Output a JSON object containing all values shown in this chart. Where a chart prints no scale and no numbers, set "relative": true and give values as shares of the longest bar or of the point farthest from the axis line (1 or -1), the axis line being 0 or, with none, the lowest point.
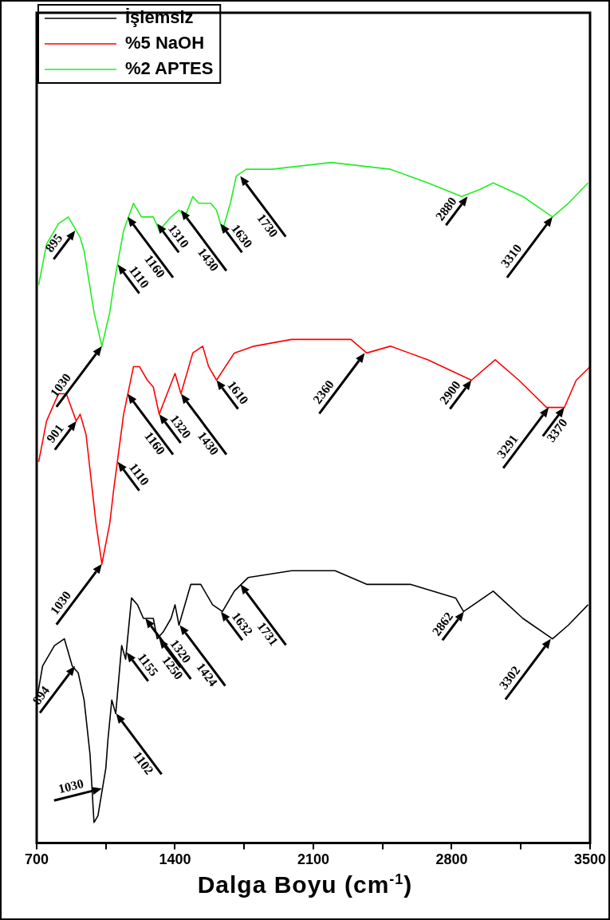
{
  "chart_data": {
    "type": "line",
    "relative": true,
    "xlabel": "Dalga Boyu (cm$^{-1}$)",
    "legend": "top left",
    "marker": "none",
    "line_style": "solid",
    "xlim": [
      700,
      3500
    ],
    "xticks": [
      700,
      {
        "value": 1050,
        "label": null
      },
      1400,
      {
        "value": 1750,
        "label": null
      },
      2100,
      {
        "value": 2450,
        "label": null
      },
      2800,
      {
        "value": 3150,
        "label": null
      },
      3500
    ],
    "series": [
      {
        "name": "İşlemsiz",
        "color": "#000000",
        "x": [
          700,
          730,
          790,
          840,
          880,
          910,
          940,
          970,
          990,
          1010,
          1050,
          1060,
          1080,
          1100,
          1130,
          1150,
          1180,
          1210,
          1240,
          1290,
          1310,
          1340,
          1380,
          1400,
          1420,
          1480,
          1530,
          1590,
          1640,
          1700,
          1770,
          1990,
          2210,
          2370,
          2590,
          2820,
          2860,
          3010,
          3160,
          3310,
          3390,
          3490
        ],
        "values": [
          0.21,
          0.26,
          0.29,
          0.3,
          0.26,
          0.25,
          0.21,
          0.13,
          0.03,
          0.04,
          0.11,
          0.15,
          0.21,
          0.19,
          0.29,
          0.27,
          0.36,
          0.35,
          0.33,
          0.33,
          0.3,
          0.31,
          0.33,
          0.35,
          0.32,
          0.38,
          0.38,
          0.35,
          0.34,
          0.37,
          0.39,
          0.4,
          0.4,
          0.38,
          0.38,
          0.36,
          0.34,
          0.37,
          0.33,
          0.3,
          0.32,
          0.35
        ]
      },
      {
        "name": "%5 NaOH",
        "color": "#ff0000",
        "x": [
          710,
          750,
          810,
          850,
          900,
          920,
          950,
          1000,
          1030,
          1070,
          1090,
          1140,
          1190,
          1220,
          1260,
          1290,
          1320,
          1360,
          1400,
          1430,
          1490,
          1540,
          1570,
          1610,
          1700,
          1800,
          1990,
          2190,
          2290,
          2370,
          2490,
          2680,
          2900,
          3020,
          3140,
          3280,
          3370,
          3430,
          3500
        ],
        "values": [
          0.56,
          0.62,
          0.66,
          0.66,
          0.62,
          0.63,
          0.6,
          0.47,
          0.41,
          0.47,
          0.52,
          0.63,
          0.7,
          0.7,
          0.68,
          0.67,
          0.63,
          0.66,
          0.69,
          0.66,
          0.72,
          0.73,
          0.7,
          0.68,
          0.72,
          0.73,
          0.74,
          0.74,
          0.74,
          0.72,
          0.73,
          0.71,
          0.68,
          0.71,
          0.68,
          0.64,
          0.64,
          0.68,
          0.7
        ]
      },
      {
        "name": "%2 APTES",
        "color": "#22ee22",
        "x": [
          710,
          750,
          810,
          860,
          900,
          920,
          940,
          990,
          1030,
          1070,
          1090,
          1140,
          1190,
          1230,
          1260,
          1290,
          1320,
          1380,
          1420,
          1450,
          1490,
          1520,
          1580,
          1610,
          1640,
          1680,
          1710,
          1760,
          1890,
          2190,
          2490,
          2680,
          2850,
          2940,
          3010,
          3160,
          3310,
          3390,
          3490
        ],
        "values": [
          0.82,
          0.88,
          0.91,
          0.92,
          0.9,
          0.89,
          0.87,
          0.78,
          0.73,
          0.78,
          0.82,
          0.9,
          0.94,
          0.92,
          0.92,
          0.92,
          0.9,
          0.92,
          0.93,
          0.92,
          0.95,
          0.94,
          0.94,
          0.93,
          0.9,
          0.94,
          0.98,
          0.99,
          0.99,
          1.0,
          0.99,
          0.97,
          0.95,
          0.96,
          0.97,
          0.95,
          0.92,
          0.94,
          0.97
        ]
      }
    ],
    "annotations": [
      {
        "text": "895",
        "x": 895,
        "y": 0.9
      },
      {
        "text": "1030",
        "x": 1030,
        "y": 0.73
      },
      {
        "text": "1110",
        "x": 1110,
        "y": 0.85
      },
      {
        "text": "1160",
        "x": 1160,
        "y": 0.92
      },
      {
        "text": "1310",
        "x": 1310,
        "y": 0.91
      },
      {
        "text": "1430",
        "x": 1430,
        "y": 0.93
      },
      {
        "text": "1630",
        "x": 1630,
        "y": 0.91
      },
      {
        "text": "1730",
        "x": 1730,
        "y": 0.98
      },
      {
        "text": "2880",
        "x": 2880,
        "y": 0.95
      },
      {
        "text": "3310",
        "x": 3310,
        "y": 0.92
      },
      {
        "text": "901",
        "x": 901,
        "y": 0.62
      },
      {
        "text": "1030",
        "x": 1030,
        "y": 0.41
      },
      {
        "text": "1110",
        "x": 1110,
        "y": 0.56
      },
      {
        "text": "1160",
        "x": 1160,
        "y": 0.66
      },
      {
        "text": "1320",
        "x": 1320,
        "y": 0.63
      },
      {
        "text": "1430",
        "x": 1430,
        "y": 0.66
      },
      {
        "text": "1610",
        "x": 1610,
        "y": 0.68
      },
      {
        "text": "2360",
        "x": 2360,
        "y": 0.72
      },
      {
        "text": "2900",
        "x": 2900,
        "y": 0.68
      },
      {
        "text": "3291",
        "x": 3291,
        "y": 0.64
      },
      {
        "text": "3370",
        "x": 3370,
        "y": 0.64
      },
      {
        "text": "894",
        "x": 894,
        "y": 0.26
      },
      {
        "text": "1030",
        "x": 1030,
        "y": 0.08
      },
      {
        "text": "1102",
        "x": 1102,
        "y": 0.19
      },
      {
        "text": "1155",
        "x": 1155,
        "y": 0.28
      },
      {
        "text": "1250",
        "x": 1250,
        "y": 0.33
      },
      {
        "text": "1320",
        "x": 1320,
        "y": 0.3
      },
      {
        "text": "1424",
        "x": 1424,
        "y": 0.32
      },
      {
        "text": "1632",
        "x": 1632,
        "y": 0.34
      },
      {
        "text": "1731",
        "x": 1731,
        "y": 0.38
      },
      {
        "text": "2862",
        "x": 2862,
        "y": 0.34
      },
      {
        "text": "3302",
        "x": 3302,
        "y": 0.3
      }
    ]
  }
}
